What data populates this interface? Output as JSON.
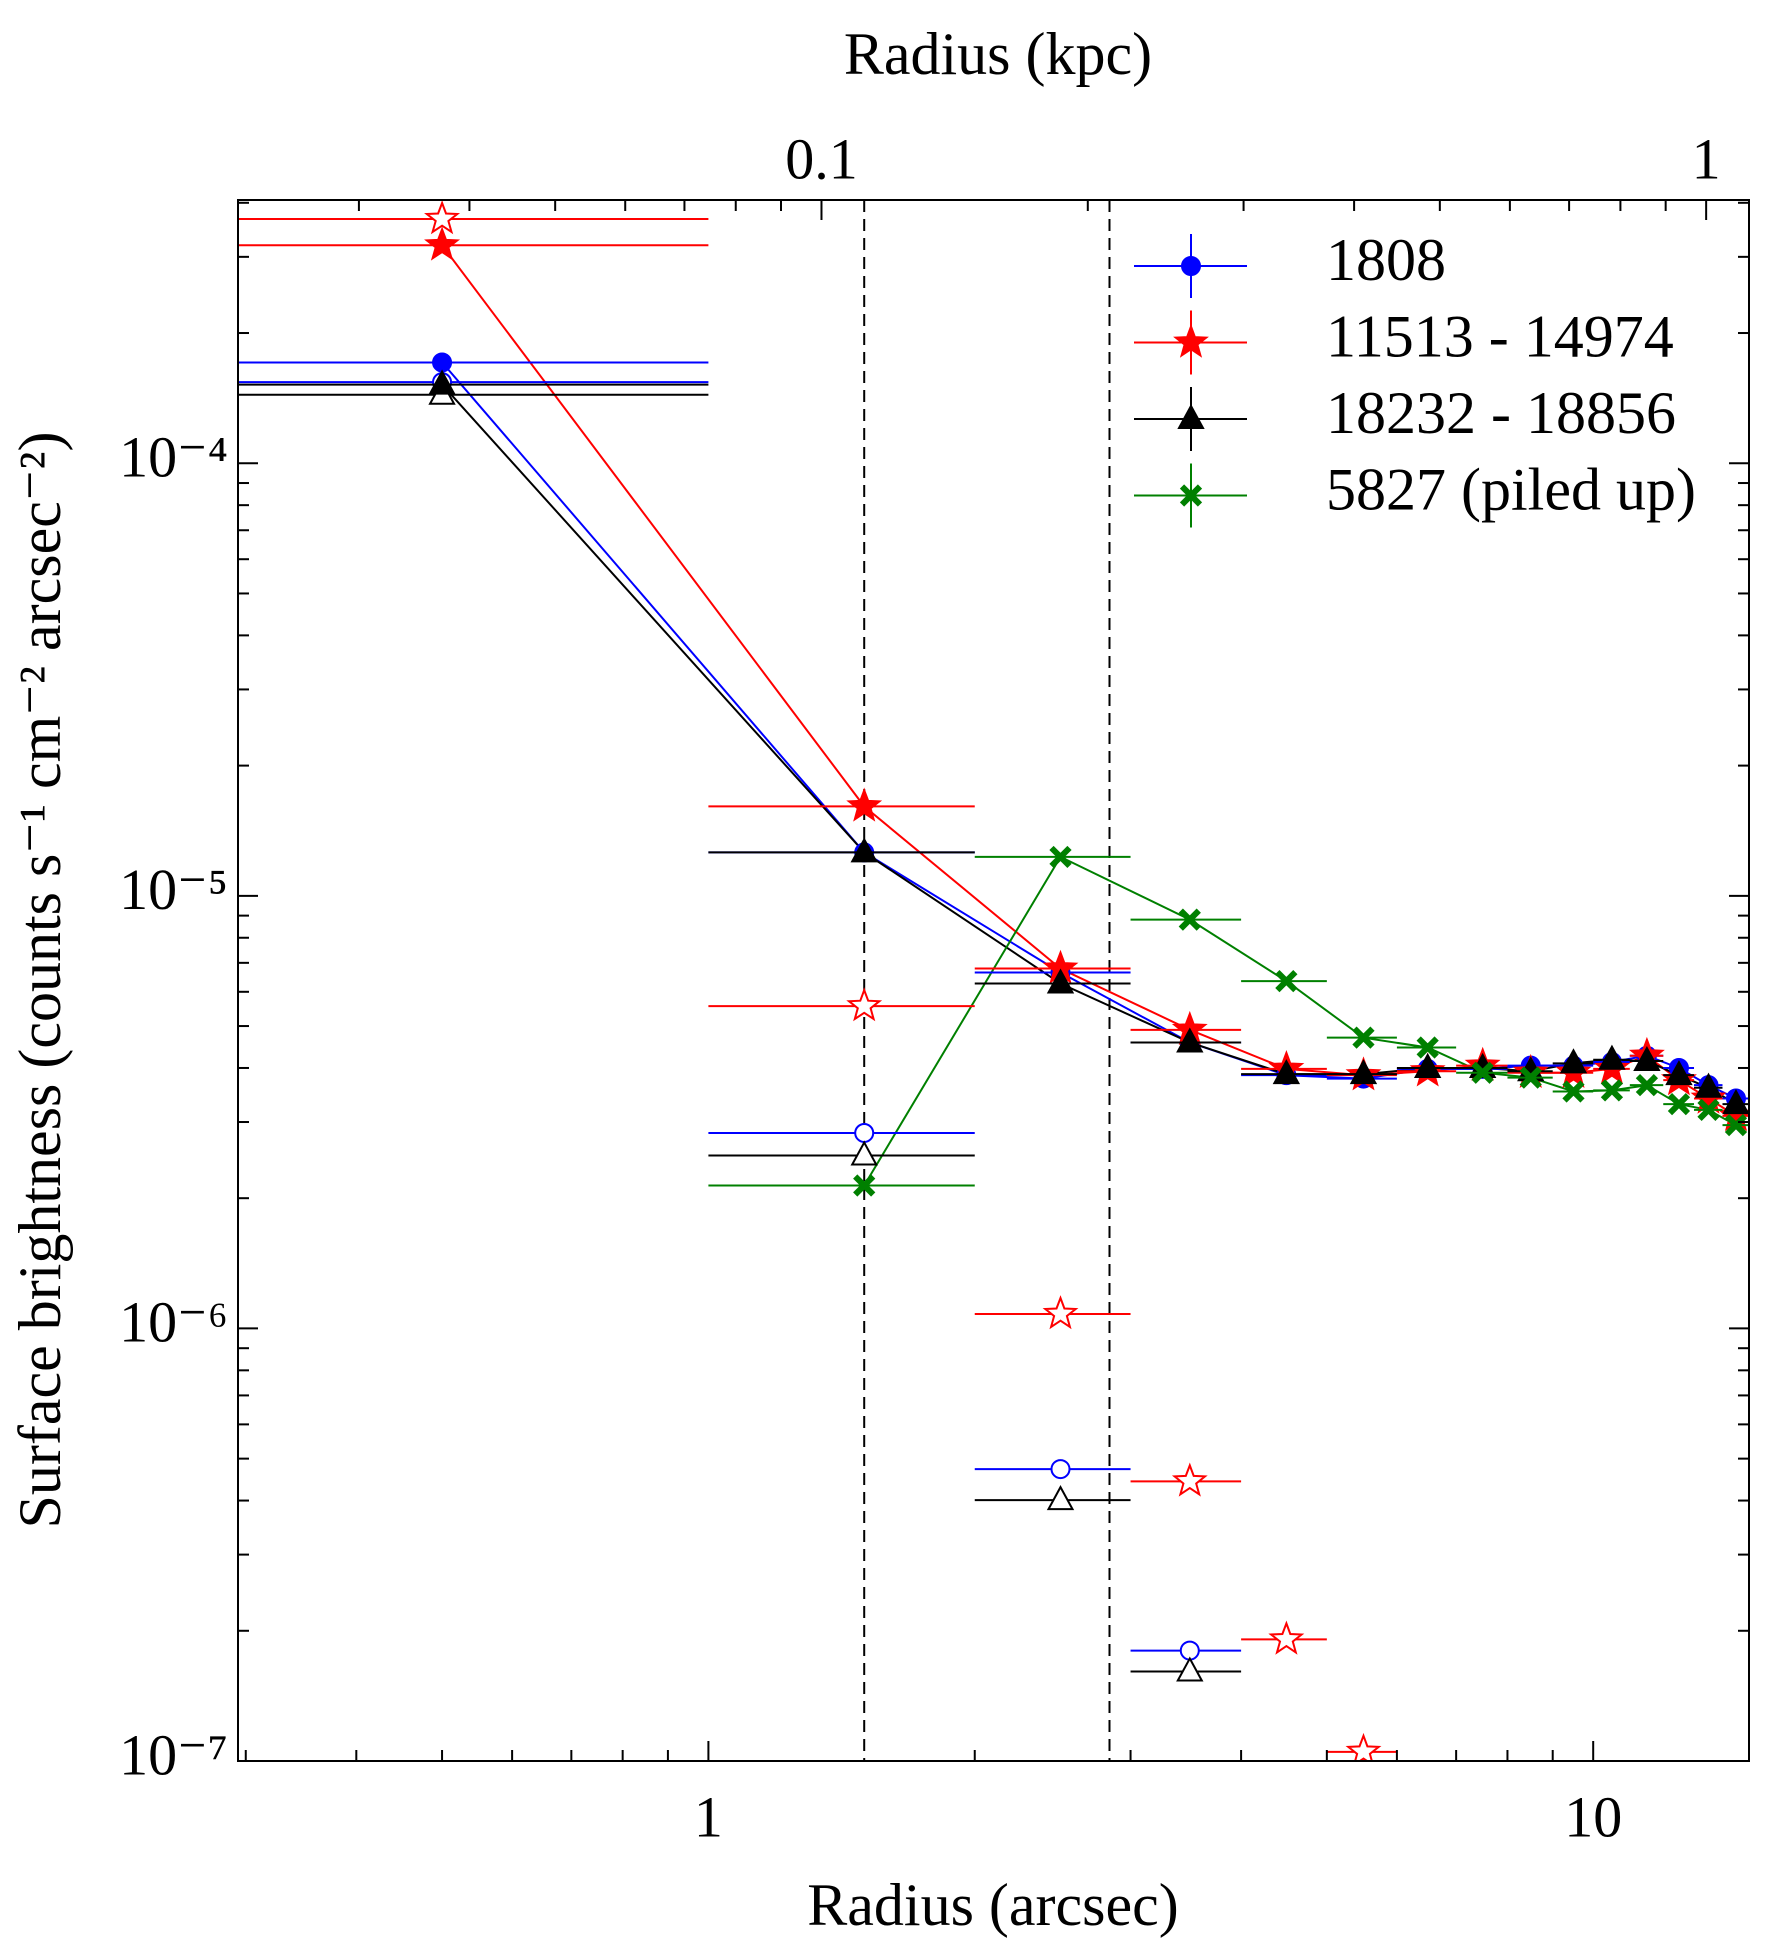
{
  "chart_data": {
    "type": "scatter",
    "xlabel": "Radius (arcsec)",
    "x2label": "Radius (kpc)",
    "ylabel": "Surface brightness (counts s⁻¹ cm⁻² arcsec⁻²)",
    "xscale": "log",
    "yscale": "log",
    "xlim": [
      0.294,
      15.0
    ],
    "x2lim": [
      0.0219,
      1.118
    ],
    "ylim": [
      1e-07,
      0.000406
    ],
    "xticks": [
      1,
      10
    ],
    "xminor": [
      0.3,
      0.4,
      0.5,
      0.6,
      0.7,
      0.8,
      0.9,
      2,
      3,
      4,
      5,
      6,
      7,
      8,
      9
    ],
    "x2ticks": [
      0.1,
      1
    ],
    "x2minor": [
      0.03,
      0.04,
      0.05,
      0.06,
      0.07,
      0.08,
      0.09,
      0.2,
      0.3,
      0.4,
      0.5,
      0.6,
      0.7,
      0.8,
      0.9
    ],
    "yticks": [
      {
        "value": 1e-07,
        "label": "10⁻⁷"
      },
      {
        "value": 1e-06,
        "label": "10⁻⁶"
      },
      {
        "value": 1e-05,
        "label": "10⁻⁵"
      },
      {
        "value": 0.0001,
        "label": "10⁻⁴"
      }
    ],
    "yminor": [
      2e-07,
      3e-07,
      4e-07,
      5e-07,
      6e-07,
      7e-07,
      8e-07,
      9e-07,
      2e-06,
      3e-06,
      4e-06,
      5e-06,
      6e-06,
      7e-06,
      8e-06,
      9e-06,
      2e-05,
      3e-05,
      4e-05,
      5e-05,
      6e-05,
      7e-05,
      8e-05,
      9e-05,
      0.0002,
      0.0003,
      0.0004
    ],
    "vlines": [
      1.5,
      2.84
    ],
    "legend": "upper right",
    "x": [
      0.5,
      1.5,
      2.5,
      3.5,
      4.5,
      5.5,
      6.5,
      7.5,
      8.5,
      9.5,
      10.5,
      11.5,
      12.5,
      13.5,
      14.5
    ],
    "xerr": 0.5,
    "series": [
      {
        "name": "1808",
        "color": "#0000ff",
        "marker": "circle",
        "values": [
          0.000171,
          1.26e-05,
          6.65e-06,
          4.58e-06,
          3.85e-06,
          3.78e-06,
          3.98e-06,
          3.98e-06,
          4.05e-06,
          4.05e-06,
          4.13e-06,
          4.27e-06,
          4e-06,
          3.65e-06,
          3.4e-06
        ],
        "open_values": [
          0.000154,
          2.83e-06,
          4.73e-07,
          1.8e-07,
          null,
          null,
          null,
          null,
          null,
          null,
          null,
          null,
          null,
          null,
          null
        ]
      },
      {
        "name": "11513 - 14974",
        "color": "#ff0000",
        "marker": "star",
        "values": [
          0.000319,
          1.61e-05,
          6.79e-06,
          4.9e-06,
          3.98e-06,
          3.85e-06,
          3.93e-06,
          4.05e-06,
          3.9e-06,
          3.9e-06,
          3.98e-06,
          4.27e-06,
          3.75e-06,
          3.4e-06,
          3.1e-06
        ],
        "open_values": [
          0.000367,
          5.56e-06,
          1.08e-06,
          4.43e-07,
          1.91e-07,
          1.05e-07,
          null,
          null,
          null,
          null,
          null,
          null,
          null,
          null,
          null
        ]
      },
      {
        "name": "18232 - 18856",
        "color": "#000000",
        "marker": "triangle",
        "values": [
          0.000152,
          1.26e-05,
          6.27e-06,
          4.58e-06,
          3.87e-06,
          3.87e-06,
          4e-06,
          4e-06,
          3.93e-06,
          4.1e-06,
          4.18e-06,
          4.15e-06,
          3.85e-06,
          3.6e-06,
          3.3e-06
        ],
        "open_values": [
          0.000144,
          2.51e-06,
          4.01e-07,
          1.61e-07,
          null,
          null,
          null,
          null,
          null,
          null,
          null,
          null,
          null,
          null,
          null
        ]
      },
      {
        "name": "5827 (piled up)",
        "color": "#008000",
        "marker": "x",
        "values": [
          null,
          2.14e-06,
          1.23e-05,
          8.81e-06,
          6.35e-06,
          4.7e-06,
          4.46e-06,
          3.9e-06,
          3.8e-06,
          3.53e-06,
          3.55e-06,
          3.65e-06,
          3.3e-06,
          3.2e-06,
          2.95e-06
        ]
      }
    ]
  }
}
